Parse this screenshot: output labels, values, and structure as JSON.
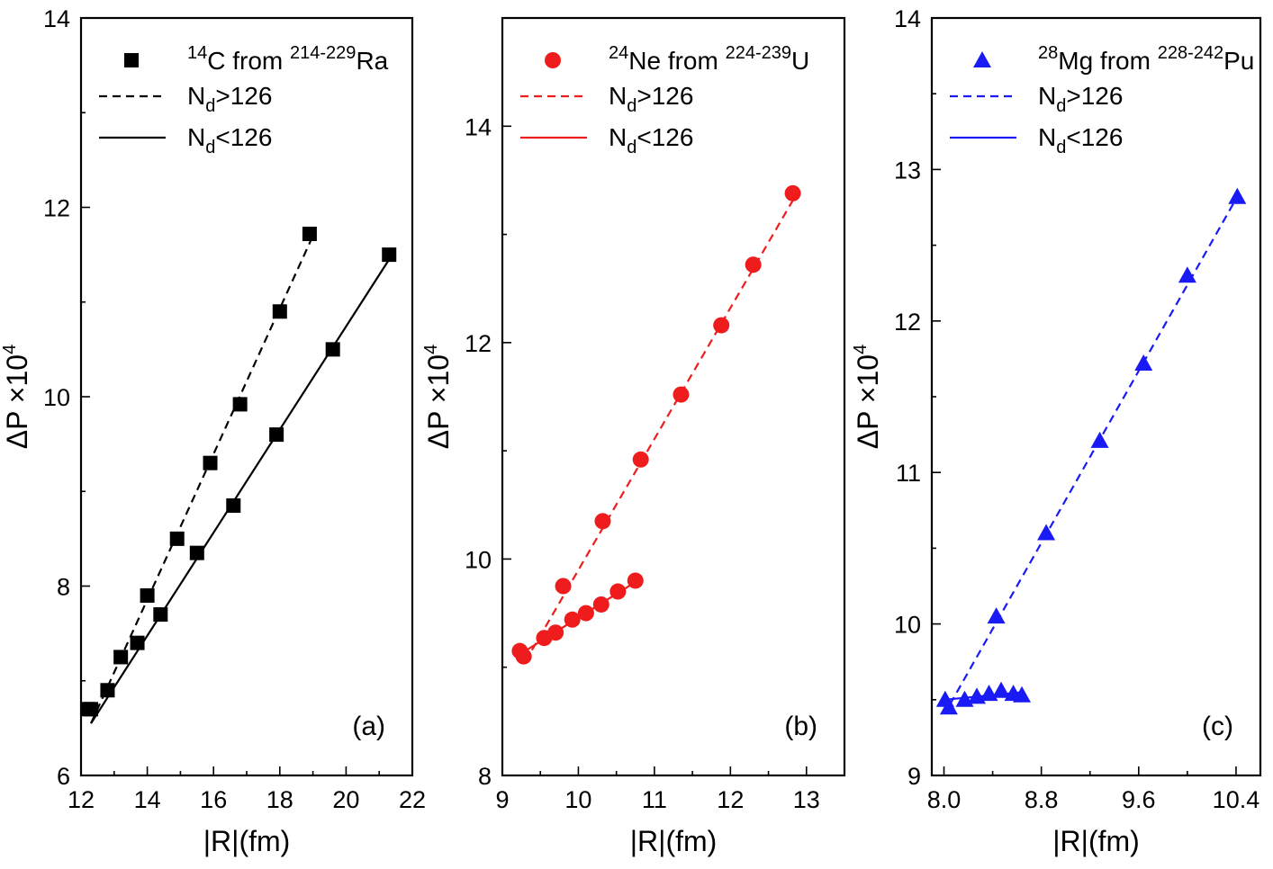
{
  "chart_data": [
    {
      "type": "scatter",
      "panel_label": "(a)",
      "color": "#000000",
      "marker": "square",
      "xlabel": "|R|(fm)",
      "ylabel": "ΔP ×10",
      "ylabel_sup": "4",
      "xlim": [
        12,
        22
      ],
      "ylim": [
        6,
        14
      ],
      "xticks": [
        12,
        14,
        16,
        18,
        20,
        22
      ],
      "xtick_labels": [
        "12",
        "14",
        "16",
        "18",
        "20",
        "22"
      ],
      "yticks": [
        6,
        8,
        10,
        12,
        14
      ],
      "ytick_labels": [
        "6",
        "8",
        "10",
        "12",
        "14"
      ],
      "legend": {
        "points": {
          "sup": "14",
          "base": "C from ",
          "sup2": "214-229",
          "base2": "Ra"
        },
        "dashed": {
          "pre": "N",
          "sub": "d",
          "post": ">126"
        },
        "solid": {
          "pre": "N",
          "sub": "d",
          "post": "<126"
        }
      },
      "series": [
        {
          "name": "points",
          "x": [
            12.2,
            12.3,
            12.8,
            13.2,
            13.7,
            14.0,
            14.4,
            14.9,
            15.5,
            15.9,
            16.6,
            16.8,
            17.9,
            18.0,
            18.9,
            19.6,
            21.3
          ],
          "y": [
            6.7,
            6.7,
            6.9,
            7.25,
            7.4,
            7.9,
            7.7,
            8.5,
            8.35,
            9.3,
            8.85,
            9.92,
            9.6,
            10.9,
            11.72,
            10.5,
            11.5
          ]
        },
        {
          "name": "Nd>126",
          "style": "dashed",
          "x": [
            12.3,
            19.0
          ],
          "y": [
            6.55,
            11.7
          ]
        },
        {
          "name": "Nd<126",
          "style": "solid",
          "x": [
            12.3,
            21.3
          ],
          "y": [
            6.55,
            11.45
          ]
        }
      ]
    },
    {
      "type": "scatter",
      "panel_label": "(b)",
      "color": "#ee1c1c",
      "marker": "circle",
      "xlabel": "|R|(fm)",
      "ylabel": "ΔP ×10",
      "ylabel_sup": "4",
      "xlim": [
        9,
        13.5
      ],
      "ylim": [
        8,
        15
      ],
      "xticks": [
        9,
        10,
        11,
        12,
        13
      ],
      "xtick_labels": [
        "9",
        "10",
        "11",
        "12",
        "13"
      ],
      "yticks": [
        8,
        10,
        12,
        14
      ],
      "ytick_labels": [
        "8",
        "10",
        "12",
        "14"
      ],
      "legend": {
        "points": {
          "sup": "24",
          "base": "Ne from ",
          "sup2": "224-239",
          "base2": "U"
        },
        "dashed": {
          "pre": "N",
          "sub": "d",
          "post": ">126"
        },
        "solid": {
          "pre": "N",
          "sub": "d",
          "post": "<126"
        }
      },
      "series": [
        {
          "name": "points",
          "x": [
            9.23,
            9.28,
            9.55,
            9.7,
            9.8,
            9.92,
            10.1,
            10.3,
            10.32,
            10.52,
            10.75,
            10.82,
            11.35,
            11.88,
            12.3,
            12.82
          ],
          "y": [
            9.15,
            9.1,
            9.27,
            9.32,
            9.75,
            9.44,
            9.5,
            9.58,
            10.35,
            9.7,
            9.8,
            10.92,
            11.52,
            12.16,
            12.72,
            13.38
          ]
        },
        {
          "name": "Nd>126",
          "style": "dashed",
          "x": [
            9.3,
            12.85
          ],
          "y": [
            9.05,
            13.35
          ]
        },
        {
          "name": "Nd<126",
          "style": "solid",
          "x": [
            9.23,
            10.78
          ],
          "y": [
            9.12,
            9.8
          ]
        }
      ]
    },
    {
      "type": "scatter",
      "panel_label": "(c)",
      "color": "#1a1af5",
      "marker": "triangle",
      "xlabel": "|R|(fm)",
      "ylabel": "ΔP ×10",
      "ylabel_sup": "4",
      "xlim": [
        7.9,
        10.6
      ],
      "ylim": [
        9,
        14
      ],
      "xticks": [
        8.0,
        8.8,
        9.6,
        10.4
      ],
      "xtick_labels": [
        "8.0",
        "8.8",
        "9.6",
        "10.4"
      ],
      "yticks": [
        9,
        10,
        11,
        12,
        13,
        14
      ],
      "ytick_labels": [
        "9",
        "10",
        "11",
        "12",
        "13",
        "14"
      ],
      "legend": {
        "points": {
          "sup": "28",
          "base": "Mg from ",
          "sup2": "228-242",
          "base2": "Pu"
        },
        "dashed": {
          "pre": "N",
          "sub": "d",
          "post": ">126"
        },
        "solid": {
          "pre": "N",
          "sub": "d",
          "post": "<126"
        }
      },
      "series": [
        {
          "name": "points",
          "x": [
            8.01,
            8.04,
            8.17,
            8.27,
            8.37,
            8.43,
            8.47,
            8.57,
            8.64,
            8.84,
            9.28,
            9.64,
            10.0,
            10.41
          ],
          "y": [
            9.5,
            9.45,
            9.5,
            9.52,
            9.54,
            10.05,
            9.56,
            9.54,
            9.53,
            10.6,
            11.21,
            11.72,
            12.3,
            12.82
          ]
        },
        {
          "name": "Nd>126",
          "style": "dashed",
          "x": [
            8.05,
            10.41
          ],
          "y": [
            9.47,
            12.82
          ]
        },
        {
          "name": "Nd<126",
          "style": "solid",
          "x": [
            8.01,
            8.65
          ],
          "y": [
            9.5,
            9.55
          ]
        }
      ]
    }
  ]
}
